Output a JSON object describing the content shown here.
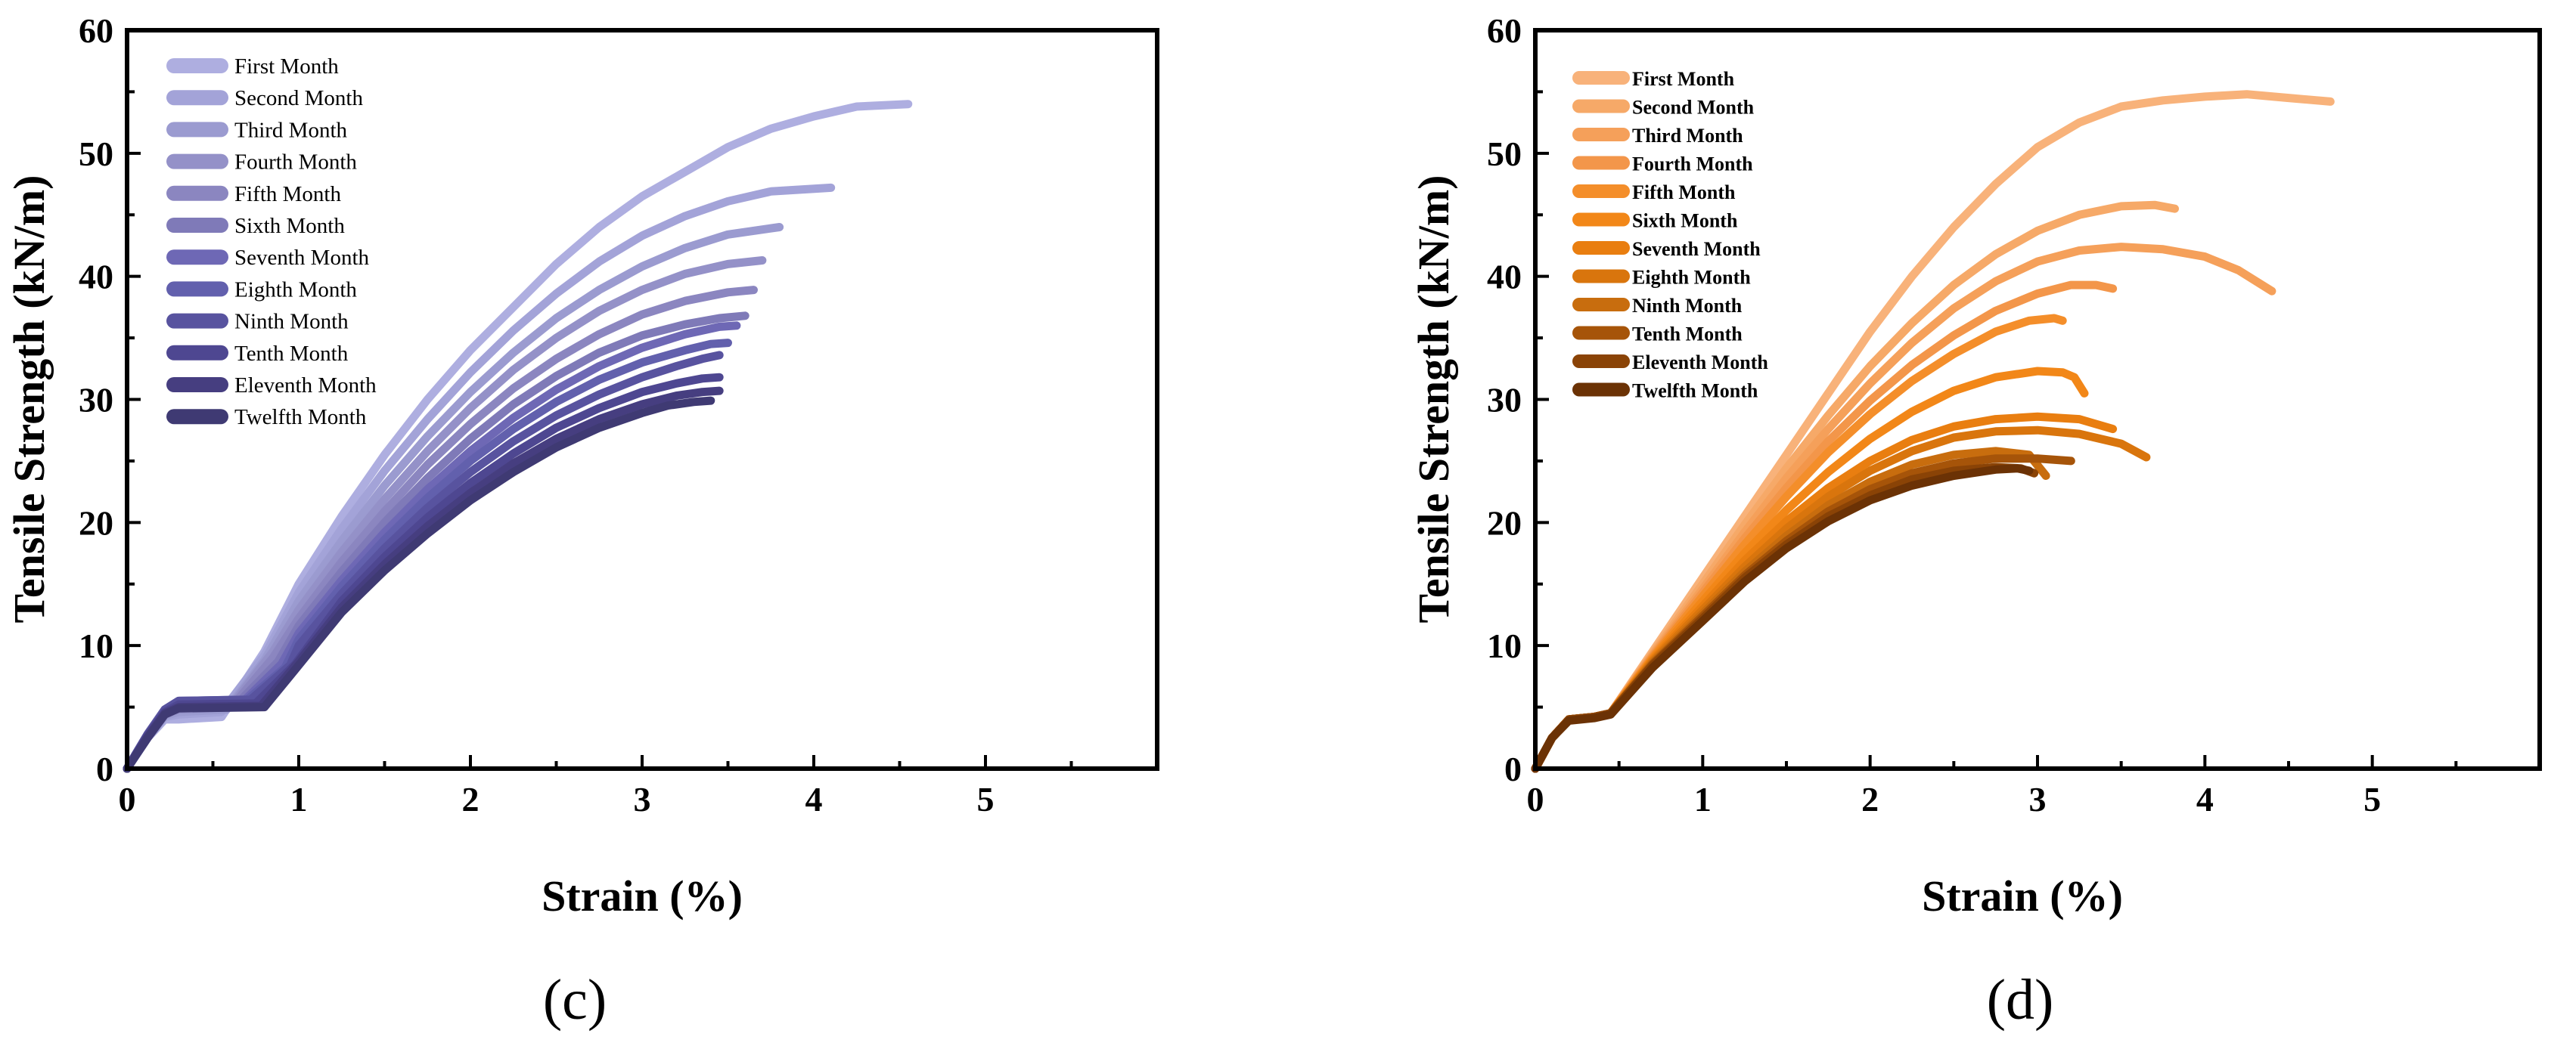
{
  "chart_data": [
    {
      "type": "line",
      "panel_label": "(c)",
      "xlabel": "Strain (%)",
      "ylabel": "Tensile Strength (kN/m)",
      "xlim": [
        0,
        6
      ],
      "ylim": [
        0,
        60
      ],
      "xticks": [
        0,
        1,
        2,
        3,
        4,
        5
      ],
      "yticks": [
        0,
        10,
        20,
        30,
        40,
        50,
        60
      ],
      "legend_position": "top-left",
      "series": [
        {
          "name": "First Month",
          "color": "#aeaee0",
          "x": [
            0,
            0.12,
            0.22,
            0.3,
            0.55,
            0.8,
            1.0,
            1.25,
            1.5,
            1.75,
            2.0,
            2.25,
            2.5,
            2.75,
            3.0,
            3.25,
            3.5,
            3.75,
            4.0,
            4.25,
            4.55
          ],
          "y": [
            0,
            2.5,
            4,
            4,
            4.2,
            9.5,
            15,
            20.5,
            25.5,
            30,
            34,
            37.5,
            41,
            44,
            46.5,
            48.5,
            50.5,
            52,
            53,
            53.8,
            54
          ]
        },
        {
          "name": "Second Month",
          "color": "#a3a3d8",
          "x": [
            0,
            0.12,
            0.22,
            0.3,
            0.55,
            0.8,
            1.0,
            1.25,
            1.5,
            1.75,
            2.0,
            2.25,
            2.5,
            2.75,
            3.0,
            3.25,
            3.5,
            3.75,
            4.1
          ],
          "y": [
            0,
            2.5,
            4.2,
            4.4,
            4.6,
            9.2,
            14.3,
            19.5,
            24.2,
            28.4,
            32.2,
            35.6,
            38.6,
            41.2,
            43.3,
            44.9,
            46.1,
            46.9,
            47.2
          ]
        },
        {
          "name": "Third Month",
          "color": "#9b9bd0",
          "x": [
            0,
            0.12,
            0.22,
            0.3,
            0.58,
            0.8,
            1.0,
            1.25,
            1.5,
            1.75,
            2.0,
            2.25,
            2.5,
            2.75,
            3.0,
            3.25,
            3.5,
            3.8
          ],
          "y": [
            0,
            2.6,
            4.3,
            4.6,
            4.8,
            8.8,
            13.6,
            18.5,
            23,
            27,
            30.6,
            33.8,
            36.6,
            38.9,
            40.8,
            42.3,
            43.4,
            44
          ]
        },
        {
          "name": "Fourth Month",
          "color": "#9491c8",
          "x": [
            0,
            0.12,
            0.22,
            0.3,
            0.6,
            0.85,
            1.0,
            1.25,
            1.5,
            1.75,
            2.0,
            2.25,
            2.5,
            2.75,
            3.0,
            3.25,
            3.5,
            3.7
          ],
          "y": [
            0,
            2.6,
            4.4,
            4.8,
            5,
            9.5,
            12.9,
            17.6,
            21.9,
            25.8,
            29.3,
            32.4,
            35,
            37.2,
            38.9,
            40.2,
            41,
            41.3
          ]
        },
        {
          "name": "Fifth Month",
          "color": "#8b86c0",
          "x": [
            0,
            0.12,
            0.22,
            0.3,
            0.62,
            0.85,
            1.0,
            1.25,
            1.5,
            1.75,
            2.0,
            2.25,
            2.5,
            2.75,
            3.0,
            3.25,
            3.5,
            3.65
          ],
          "y": [
            0,
            2.7,
            4.5,
            5,
            5.2,
            9,
            12.2,
            16.8,
            20.9,
            24.7,
            28,
            30.9,
            33.3,
            35.3,
            36.9,
            38,
            38.7,
            38.9
          ]
        },
        {
          "name": "Sixth Month",
          "color": "#7f7ab8",
          "x": [
            0,
            0.12,
            0.22,
            0.3,
            0.65,
            0.88,
            1.0,
            1.25,
            1.5,
            1.75,
            2.0,
            2.25,
            2.5,
            2.75,
            3.0,
            3.25,
            3.45,
            3.6
          ],
          "y": [
            0,
            2.7,
            4.6,
            5.2,
            5.4,
            8.7,
            11.6,
            16,
            20,
            23.6,
            26.8,
            29.6,
            31.9,
            33.8,
            35.2,
            36.1,
            36.6,
            36.8
          ]
        },
        {
          "name": "Seventh Month",
          "color": "#6e68b5",
          "x": [
            0,
            0.12,
            0.22,
            0.3,
            0.68,
            0.9,
            1.0,
            1.25,
            1.5,
            1.75,
            2.0,
            2.25,
            2.5,
            2.75,
            3.0,
            3.25,
            3.45,
            3.55
          ],
          "y": [
            0,
            2.8,
            4.7,
            5.4,
            5.5,
            8.5,
            11,
            15.3,
            19.2,
            22.7,
            25.8,
            28.5,
            30.8,
            32.7,
            34.2,
            35.3,
            35.9,
            36
          ]
        },
        {
          "name": "Eighth Month",
          "color": "#6260ad",
          "x": [
            0,
            0.12,
            0.22,
            0.3,
            0.7,
            0.92,
            1.0,
            1.25,
            1.5,
            1.75,
            2.0,
            2.25,
            2.5,
            2.75,
            3.0,
            3.25,
            3.4,
            3.5
          ],
          "y": [
            0,
            2.8,
            4.8,
            5.5,
            5.6,
            8.2,
            10.5,
            14.8,
            18.6,
            22,
            25,
            27.6,
            29.8,
            31.6,
            33,
            34,
            34.5,
            34.6
          ]
        },
        {
          "name": "Ninth Month",
          "color": "#58539f",
          "x": [
            0,
            0.12,
            0.22,
            0.3,
            0.72,
            0.95,
            1.0,
            1.25,
            1.5,
            1.75,
            2.0,
            2.25,
            2.5,
            2.75,
            3.0,
            3.2,
            3.35,
            3.45
          ],
          "y": [
            0,
            2.8,
            4.8,
            5.5,
            5.6,
            8.4,
            10,
            14.2,
            17.9,
            21.2,
            24.1,
            26.6,
            28.7,
            30.4,
            31.8,
            32.7,
            33.3,
            33.6
          ]
        },
        {
          "name": "Tenth Month",
          "color": "#4e4791",
          "x": [
            0,
            0.12,
            0.22,
            0.3,
            0.75,
            0.98,
            1.25,
            1.5,
            1.75,
            2.0,
            2.25,
            2.5,
            2.75,
            3.0,
            3.2,
            3.35,
            3.45
          ],
          "y": [
            0,
            2.7,
            4.6,
            5.2,
            5.3,
            8.5,
            13.6,
            17.2,
            20.4,
            23.2,
            25.6,
            27.7,
            29.3,
            30.6,
            31.3,
            31.7,
            31.8
          ]
        },
        {
          "name": "Eleventh Month",
          "color": "#463e80",
          "x": [
            0,
            0.12,
            0.22,
            0.3,
            0.78,
            1.0,
            1.25,
            1.5,
            1.75,
            2.0,
            2.25,
            2.5,
            2.75,
            3.0,
            3.2,
            3.35,
            3.45
          ],
          "y": [
            0,
            2.6,
            4.5,
            5,
            5.1,
            8.7,
            13.1,
            16.6,
            19.7,
            22.4,
            24.8,
            26.8,
            28.4,
            29.6,
            30.3,
            30.6,
            30.7
          ]
        },
        {
          "name": "Twelfth Month",
          "color": "#3f3a73",
          "x": [
            0,
            0.12,
            0.22,
            0.3,
            0.8,
            1.0,
            1.25,
            1.5,
            1.75,
            2.0,
            2.25,
            2.5,
            2.75,
            3.0,
            3.15,
            3.3,
            3.4
          ],
          "y": [
            0,
            2.5,
            4.4,
            4.9,
            5,
            8.4,
            12.7,
            16.1,
            19.1,
            21.8,
            24.1,
            26.1,
            27.7,
            28.9,
            29.5,
            29.8,
            29.9
          ]
        }
      ]
    },
    {
      "type": "line",
      "panel_label": "(d)",
      "xlabel": "Strain (%)",
      "ylabel": "Tensile Strength (kN/m)",
      "xlim": [
        0,
        6
      ],
      "ylim": [
        0,
        60
      ],
      "xticks": [
        0,
        1,
        2,
        3,
        4,
        5
      ],
      "yticks": [
        0,
        10,
        20,
        30,
        40,
        50,
        60
      ],
      "legend_position": "top-left",
      "series": [
        {
          "name": "First Month",
          "color": "#f8b27a",
          "x": [
            0,
            0.1,
            0.2,
            0.35,
            0.45,
            0.7,
            1.0,
            1.25,
            1.5,
            1.75,
            2.0,
            2.25,
            2.5,
            2.75,
            3.0,
            3.25,
            3.5,
            3.75,
            4.0,
            4.25,
            4.5,
            4.75
          ],
          "y": [
            0,
            2.5,
            4,
            4.2,
            4.5,
            9.5,
            15.5,
            20.5,
            25.5,
            30.5,
            35.5,
            40,
            44,
            47.5,
            50.5,
            52.5,
            53.8,
            54.3,
            54.6,
            54.8,
            54.5,
            54.2
          ]
        },
        {
          "name": "Second Month",
          "color": "#f6a968",
          "x": [
            0,
            0.1,
            0.2,
            0.35,
            0.45,
            0.7,
            1.0,
            1.25,
            1.5,
            1.75,
            2.0,
            2.25,
            2.5,
            2.75,
            3.0,
            3.25,
            3.5,
            3.7,
            3.82
          ],
          "y": [
            0,
            2.5,
            4,
            4.2,
            4.5,
            9.3,
            15,
            19.8,
            24.4,
            28.7,
            32.7,
            36.2,
            39.3,
            41.8,
            43.7,
            45,
            45.7,
            45.8,
            45.5
          ]
        },
        {
          "name": "Third Month",
          "color": "#f5a05a",
          "x": [
            0,
            0.1,
            0.2,
            0.35,
            0.45,
            0.7,
            1.0,
            1.25,
            1.5,
            1.75,
            2.0,
            2.25,
            2.5,
            2.75,
            3.0,
            3.25,
            3.5,
            3.75,
            4.0,
            4.2,
            4.4
          ],
          "y": [
            0,
            2.5,
            4,
            4.2,
            4.5,
            9.2,
            14.6,
            19.2,
            23.6,
            27.6,
            31.3,
            34.6,
            37.4,
            39.6,
            41.2,
            42.1,
            42.4,
            42.2,
            41.6,
            40.5,
            38.8
          ]
        },
        {
          "name": "Fourth Month",
          "color": "#f3964a",
          "x": [
            0,
            0.1,
            0.2,
            0.35,
            0.45,
            0.7,
            1.0,
            1.25,
            1.5,
            1.75,
            2.0,
            2.25,
            2.5,
            2.75,
            3.0,
            3.2,
            3.35,
            3.45
          ],
          "y": [
            0,
            2.5,
            4,
            4.2,
            4.5,
            9.1,
            14.3,
            18.7,
            22.8,
            26.6,
            29.9,
            32.8,
            35.2,
            37.2,
            38.6,
            39.3,
            39.3,
            39
          ]
        },
        {
          "name": "Fifth Month",
          "color": "#f48e2a",
          "x": [
            0,
            0.1,
            0.2,
            0.35,
            0.45,
            0.7,
            1.0,
            1.25,
            1.5,
            1.75,
            2.0,
            2.25,
            2.5,
            2.75,
            2.95,
            3.1,
            3.15
          ],
          "y": [
            0,
            2.5,
            4,
            4.2,
            4.5,
            9,
            14,
            18.2,
            22.1,
            25.7,
            28.8,
            31.5,
            33.7,
            35.5,
            36.4,
            36.6,
            36.4
          ]
        },
        {
          "name": "Sixth Month",
          "color": "#f28718",
          "x": [
            0,
            0.1,
            0.2,
            0.35,
            0.45,
            0.7,
            1.0,
            1.25,
            1.5,
            1.75,
            2.0,
            2.25,
            2.5,
            2.75,
            3.0,
            3.15,
            3.22,
            3.28
          ],
          "y": [
            0,
            2.5,
            4,
            4.2,
            4.5,
            8.9,
            13.6,
            17.5,
            21,
            24.1,
            26.8,
            29,
            30.7,
            31.8,
            32.3,
            32.2,
            31.8,
            30.5
          ]
        },
        {
          "name": "Seventh Month",
          "color": "#e97e10",
          "x": [
            0,
            0.1,
            0.2,
            0.35,
            0.45,
            0.7,
            1.0,
            1.25,
            1.5,
            1.75,
            2.0,
            2.25,
            2.5,
            2.75,
            3.0,
            3.25,
            3.45
          ],
          "y": [
            0,
            2.5,
            4,
            4.2,
            4.5,
            8.8,
            13.2,
            16.9,
            20.1,
            22.8,
            25,
            26.7,
            27.8,
            28.4,
            28.6,
            28.4,
            27.6
          ]
        },
        {
          "name": "Eighth Month",
          "color": "#d9750d",
          "x": [
            0,
            0.1,
            0.2,
            0.35,
            0.45,
            0.7,
            1.0,
            1.25,
            1.5,
            1.75,
            2.0,
            2.25,
            2.5,
            2.75,
            3.0,
            3.25,
            3.5,
            3.65
          ],
          "y": [
            0,
            2.5,
            4,
            4.2,
            4.5,
            8.7,
            12.9,
            16.4,
            19.5,
            22.1,
            24.2,
            25.8,
            26.9,
            27.4,
            27.5,
            27.2,
            26.4,
            25.3
          ]
        },
        {
          "name": "Ninth Month",
          "color": "#c86d0e",
          "x": [
            0,
            0.1,
            0.2,
            0.35,
            0.45,
            0.7,
            1.0,
            1.25,
            1.5,
            1.75,
            2.0,
            2.25,
            2.5,
            2.75,
            2.95,
            3.05
          ],
          "y": [
            0,
            2.5,
            4,
            4.2,
            4.5,
            8.6,
            12.6,
            16,
            18.9,
            21.4,
            23.3,
            24.7,
            25.5,
            25.8,
            25.5,
            23.8
          ]
        },
        {
          "name": "Tenth Month",
          "color": "#a65409",
          "x": [
            0,
            0.1,
            0.2,
            0.35,
            0.45,
            0.7,
            1.0,
            1.25,
            1.5,
            1.75,
            2.0,
            2.25,
            2.5,
            2.75,
            3.0,
            3.2
          ],
          "y": [
            0,
            2.5,
            4,
            4.2,
            4.5,
            8.5,
            12.4,
            15.7,
            18.5,
            20.9,
            22.7,
            24,
            24.8,
            25.2,
            25.2,
            25
          ]
        },
        {
          "name": "Eleventh Month",
          "color": "#8a4306",
          "x": [
            0,
            0.1,
            0.2,
            0.35,
            0.45,
            0.7,
            1.0,
            1.25,
            1.5,
            1.75,
            2.0,
            2.25,
            2.5,
            2.75,
            2.9,
            2.98
          ],
          "y": [
            0,
            2.5,
            4,
            4.2,
            4.5,
            8.4,
            12.2,
            15.5,
            18.2,
            20.5,
            22.2,
            23.5,
            24.2,
            24.5,
            24.4,
            24
          ]
        },
        {
          "name": "Twelfth Month",
          "color": "#6b3205",
          "x": [
            0,
            0.1,
            0.2,
            0.35,
            0.45,
            0.7,
            1.0,
            1.25,
            1.5,
            1.75,
            2.0,
            2.25,
            2.5,
            2.75,
            2.88,
            2.95
          ],
          "y": [
            0,
            2.5,
            3.9,
            4.1,
            4.4,
            8.2,
            12,
            15.2,
            17.9,
            20.1,
            21.8,
            23,
            23.8,
            24.3,
            24.4,
            24.2
          ]
        }
      ]
    }
  ]
}
